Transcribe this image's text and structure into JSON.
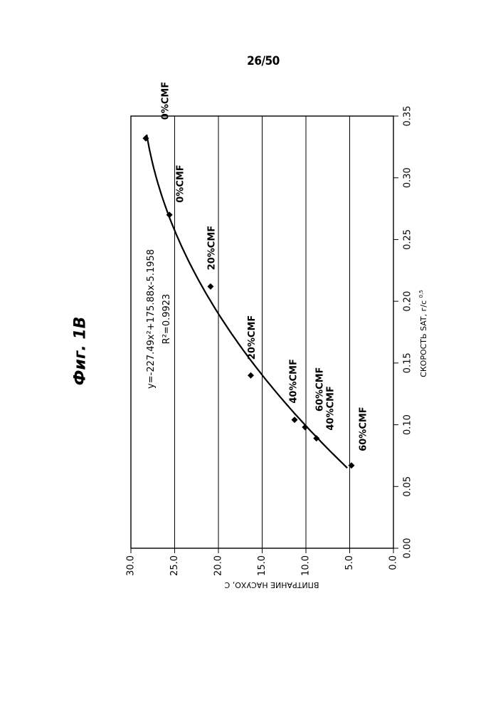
{
  "page_number": "26/50",
  "figure_title": "Фиг. 1В",
  "chart_data": {
    "type": "scatter",
    "title": "Фиг. 1В",
    "xlabel": "СКОРОСТЬ SAT, г/с",
    "xlabel_exponent": "0,5",
    "ylabel": "ВПИТРАНИЕ НАСУХО, С",
    "xlim": [
      0,
      0.35
    ],
    "ylim": [
      0,
      30
    ],
    "x_ticks": [
      0.0,
      0.05,
      0.1,
      0.15,
      0.2,
      0.25,
      0.3,
      0.35
    ],
    "x_tick_labels": [
      "0.00",
      "0.05",
      "0.10",
      "0.15",
      "0.20",
      "0.25",
      "0.30",
      "0.35"
    ],
    "y_ticks": [
      0,
      5,
      10,
      15,
      20,
      25,
      30
    ],
    "y_tick_labels": [
      "0.0",
      "5.0",
      "10.0",
      "15.0",
      "20.0",
      "25.0",
      "30.0"
    ],
    "grid": "horizontal",
    "points": [
      {
        "x": 0.332,
        "y": 28.3,
        "label": "0%CMF"
      },
      {
        "x": 0.27,
        "y": 25.6,
        "label": "0%CMF"
      },
      {
        "x": 0.212,
        "y": 20.9,
        "label": "20%CMF"
      },
      {
        "x": 0.14,
        "y": 16.3,
        "label": "20%CMF"
      },
      {
        "x": 0.104,
        "y": 11.3,
        "label": "40%CMF"
      },
      {
        "x": 0.098,
        "y": 10.1,
        "label": "60%CMF"
      },
      {
        "x": 0.089,
        "y": 8.8,
        "label": "40%CMF"
      },
      {
        "x": 0.067,
        "y": 4.8,
        "label": "60%CMF"
      }
    ],
    "trendline": {
      "type": "polynomial",
      "coefficients": [
        -227.49,
        175.88,
        -5.1958
      ],
      "x_range": [
        0.065,
        0.335
      ],
      "equation_text": "y=-227.49x²+175.88x-5.1958",
      "r2_text": "R²=0.9923"
    }
  }
}
